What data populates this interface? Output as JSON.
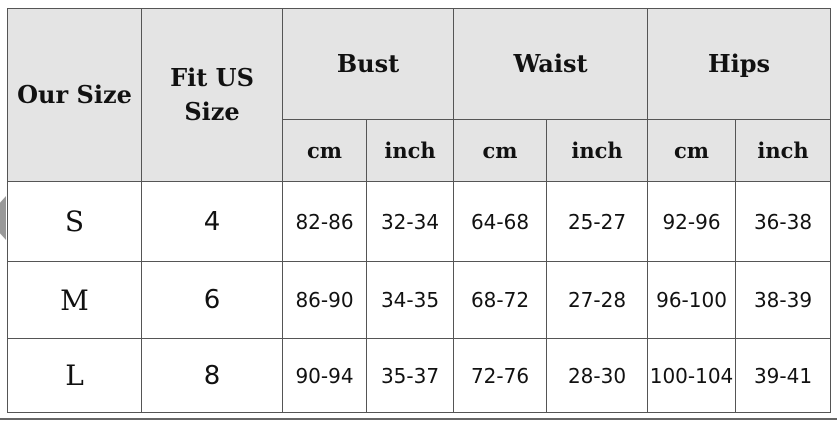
{
  "table": {
    "headers": {
      "our_size": "Our Size",
      "fit_us": "Fit US Size",
      "groups": [
        "Bust",
        "Waist",
        "Hips"
      ],
      "units": [
        "cm",
        "inch",
        "cm",
        "inch",
        "cm",
        "inch"
      ]
    },
    "rows": [
      {
        "size": "S",
        "us": "4",
        "values": [
          "82-86",
          "32-34",
          "64-68",
          "25-27",
          "92-96",
          "36-38"
        ]
      },
      {
        "size": "M",
        "us": "6",
        "values": [
          "86-90",
          "34-35",
          "68-72",
          "27-28",
          "96-100",
          "38-39"
        ]
      },
      {
        "size": "L",
        "us": "8",
        "values": [
          "90-94",
          "35-37",
          "72-76",
          "28-30",
          "100-104",
          "39-41"
        ]
      }
    ]
  },
  "colors": {
    "header_bg": "#e4e4e4",
    "border": "#555555"
  }
}
